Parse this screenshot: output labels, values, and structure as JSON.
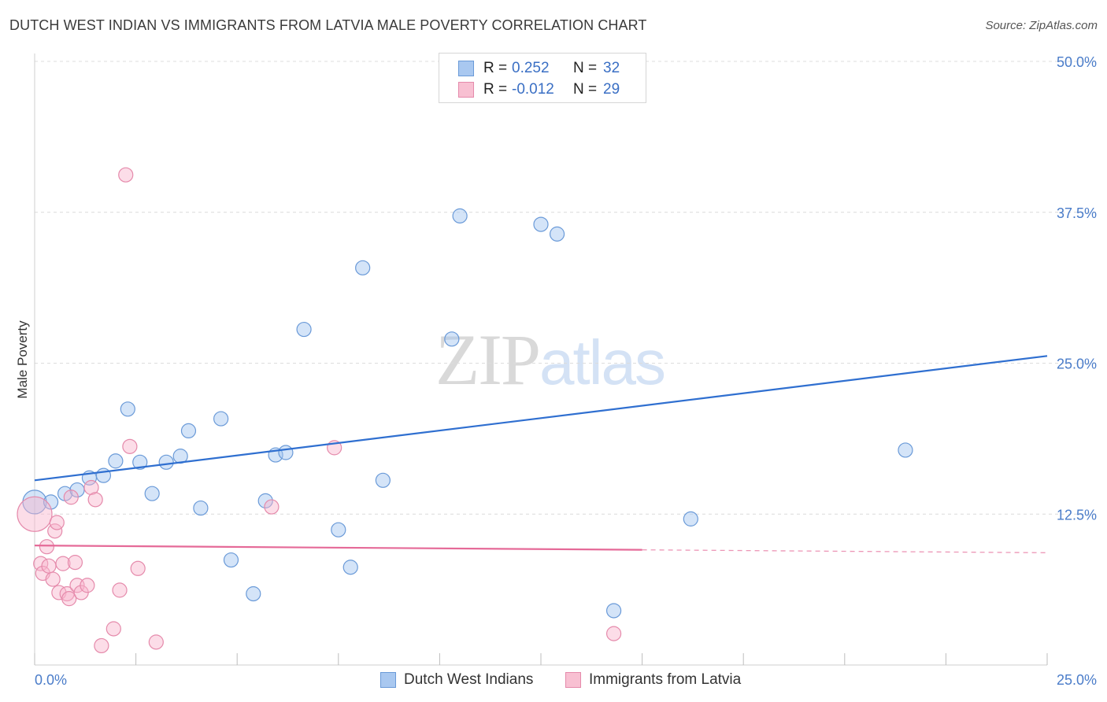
{
  "title": "DUTCH WEST INDIAN VS IMMIGRANTS FROM LATVIA MALE POVERTY CORRELATION CHART",
  "source": "Source: ZipAtlas.com",
  "watermark": {
    "zip": "ZIP",
    "atlas": "atlas"
  },
  "legend": {
    "rows": [
      {
        "r_label": "R =",
        "r_value": "0.252",
        "n_label": "N =",
        "n_value": "32",
        "color": "#a9c8f0",
        "border": "#6a9ad8"
      },
      {
        "r_label": "R =",
        "r_value": "-0.012",
        "n_label": "N =",
        "n_value": "29",
        "color": "#f8c0d2",
        "border": "#e58aab"
      }
    ]
  },
  "chart_data": {
    "type": "scatter",
    "title": "DUTCH WEST INDIAN VS IMMIGRANTS FROM LATVIA MALE POVERTY CORRELATION CHART",
    "xlabel": "",
    "ylabel": "Male Poverty",
    "xlim": [
      0,
      25
    ],
    "ylim": [
      0,
      50
    ],
    "x_tick_labels": [
      "0.0%",
      "25.0%"
    ],
    "y_ticks": [
      12.5,
      25.0,
      37.5,
      50.0
    ],
    "y_tick_labels": [
      "12.5%",
      "25.0%",
      "37.5%",
      "50.0%"
    ],
    "grid": true,
    "legend_position": "top-center",
    "series": [
      {
        "name": "Dutch West Indians",
        "color": "#6a9ad8",
        "points": [
          [
            0.0,
            13.5
          ],
          [
            0.4,
            13.5
          ],
          [
            0.75,
            14.2
          ],
          [
            1.05,
            14.5
          ],
          [
            1.35,
            15.5
          ],
          [
            1.7,
            15.7
          ],
          [
            2.0,
            16.9
          ],
          [
            2.3,
            21.2
          ],
          [
            2.6,
            16.8
          ],
          [
            2.9,
            14.2
          ],
          [
            3.25,
            16.8
          ],
          [
            3.6,
            17.3
          ],
          [
            3.8,
            19.4
          ],
          [
            4.1,
            13.0
          ],
          [
            4.6,
            20.4
          ],
          [
            4.85,
            8.7
          ],
          [
            5.4,
            5.9
          ],
          [
            5.7,
            13.6
          ],
          [
            5.95,
            17.4
          ],
          [
            6.2,
            17.6
          ],
          [
            6.65,
            27.8
          ],
          [
            7.5,
            11.2
          ],
          [
            7.8,
            8.1
          ],
          [
            8.1,
            32.9
          ],
          [
            8.6,
            15.3
          ],
          [
            10.5,
            37.2
          ],
          [
            10.3,
            27.0
          ],
          [
            12.5,
            36.5
          ],
          [
            12.9,
            35.7
          ],
          [
            14.3,
            4.5
          ],
          [
            16.2,
            12.1
          ],
          [
            21.5,
            17.8
          ]
        ],
        "point_sizes": [
          15,
          9,
          9,
          9,
          9,
          9,
          9,
          9,
          9,
          9,
          9,
          9,
          9,
          9,
          9,
          9,
          9,
          9,
          9,
          9,
          9,
          9,
          9,
          9,
          9,
          9,
          9,
          9,
          9,
          9,
          9,
          9
        ],
        "trendline": {
          "x": [
            0,
            25
          ],
          "y": [
            15.3,
            25.6
          ],
          "dashed_from": null
        }
      },
      {
        "name": "Immigrants from Latvia",
        "color": "#e58aab",
        "points": [
          [
            0.0,
            12.5
          ],
          [
            0.15,
            8.4
          ],
          [
            0.2,
            7.6
          ],
          [
            0.3,
            9.8
          ],
          [
            0.35,
            8.2
          ],
          [
            0.45,
            7.1
          ],
          [
            0.5,
            11.1
          ],
          [
            0.55,
            11.8
          ],
          [
            0.6,
            6.0
          ],
          [
            0.7,
            8.4
          ],
          [
            0.8,
            5.9
          ],
          [
            0.85,
            5.5
          ],
          [
            0.9,
            13.9
          ],
          [
            1.0,
            8.5
          ],
          [
            1.05,
            6.6
          ],
          [
            1.15,
            6.0
          ],
          [
            1.3,
            6.6
          ],
          [
            1.4,
            14.7
          ],
          [
            1.5,
            13.7
          ],
          [
            1.95,
            3.0
          ],
          [
            1.65,
            1.6
          ],
          [
            2.1,
            6.2
          ],
          [
            2.25,
            40.6
          ],
          [
            2.35,
            18.1
          ],
          [
            2.55,
            8.0
          ],
          [
            3.0,
            1.9
          ],
          [
            5.85,
            13.1
          ],
          [
            7.4,
            18.0
          ],
          [
            14.3,
            2.6
          ]
        ],
        "point_sizes": [
          22,
          9,
          9,
          9,
          9,
          9,
          9,
          9,
          9,
          9,
          9,
          9,
          9,
          9,
          9,
          9,
          9,
          9,
          9,
          9,
          9,
          9,
          9,
          9,
          9,
          9,
          9,
          9,
          9
        ],
        "trendline": {
          "x": [
            0,
            25
          ],
          "y": [
            9.9,
            9.3
          ],
          "dashed_from": 15
        }
      }
    ]
  }
}
